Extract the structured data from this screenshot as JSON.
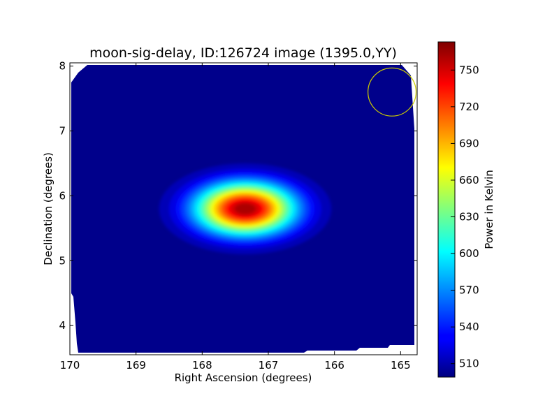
{
  "chart_data": {
    "type": "heatmap",
    "title": "moon-sig-delay, ID:126724 image (1395.0,YY)",
    "xlabel": "Right Ascension (degrees)",
    "ylabel": "Declination (degrees)",
    "xlim": [
      170.0,
      164.75
    ],
    "ylim": [
      3.55,
      8.05
    ],
    "x_ticks": [
      170,
      169,
      168,
      167,
      166,
      165
    ],
    "y_ticks": [
      4,
      5,
      6,
      7,
      8
    ],
    "colorbar": {
      "label": "Power in Kelvin",
      "range": [
        499,
        773
      ],
      "ticks": [
        510,
        540,
        570,
        600,
        630,
        660,
        690,
        720,
        750
      ],
      "colormap": "jet"
    },
    "background_level": 502,
    "source": {
      "ra": 167.35,
      "dec": 5.8,
      "peak": 773,
      "sigma_ra": 0.52,
      "sigma_dec": 0.28
    },
    "beam_circle": {
      "ra": 165.13,
      "dec": 7.6,
      "radius_deg": 0.37,
      "color": "#cccc00"
    },
    "colors": {
      "background": "#ffffff",
      "axis": "#000000",
      "beam": "#cccc00"
    }
  }
}
